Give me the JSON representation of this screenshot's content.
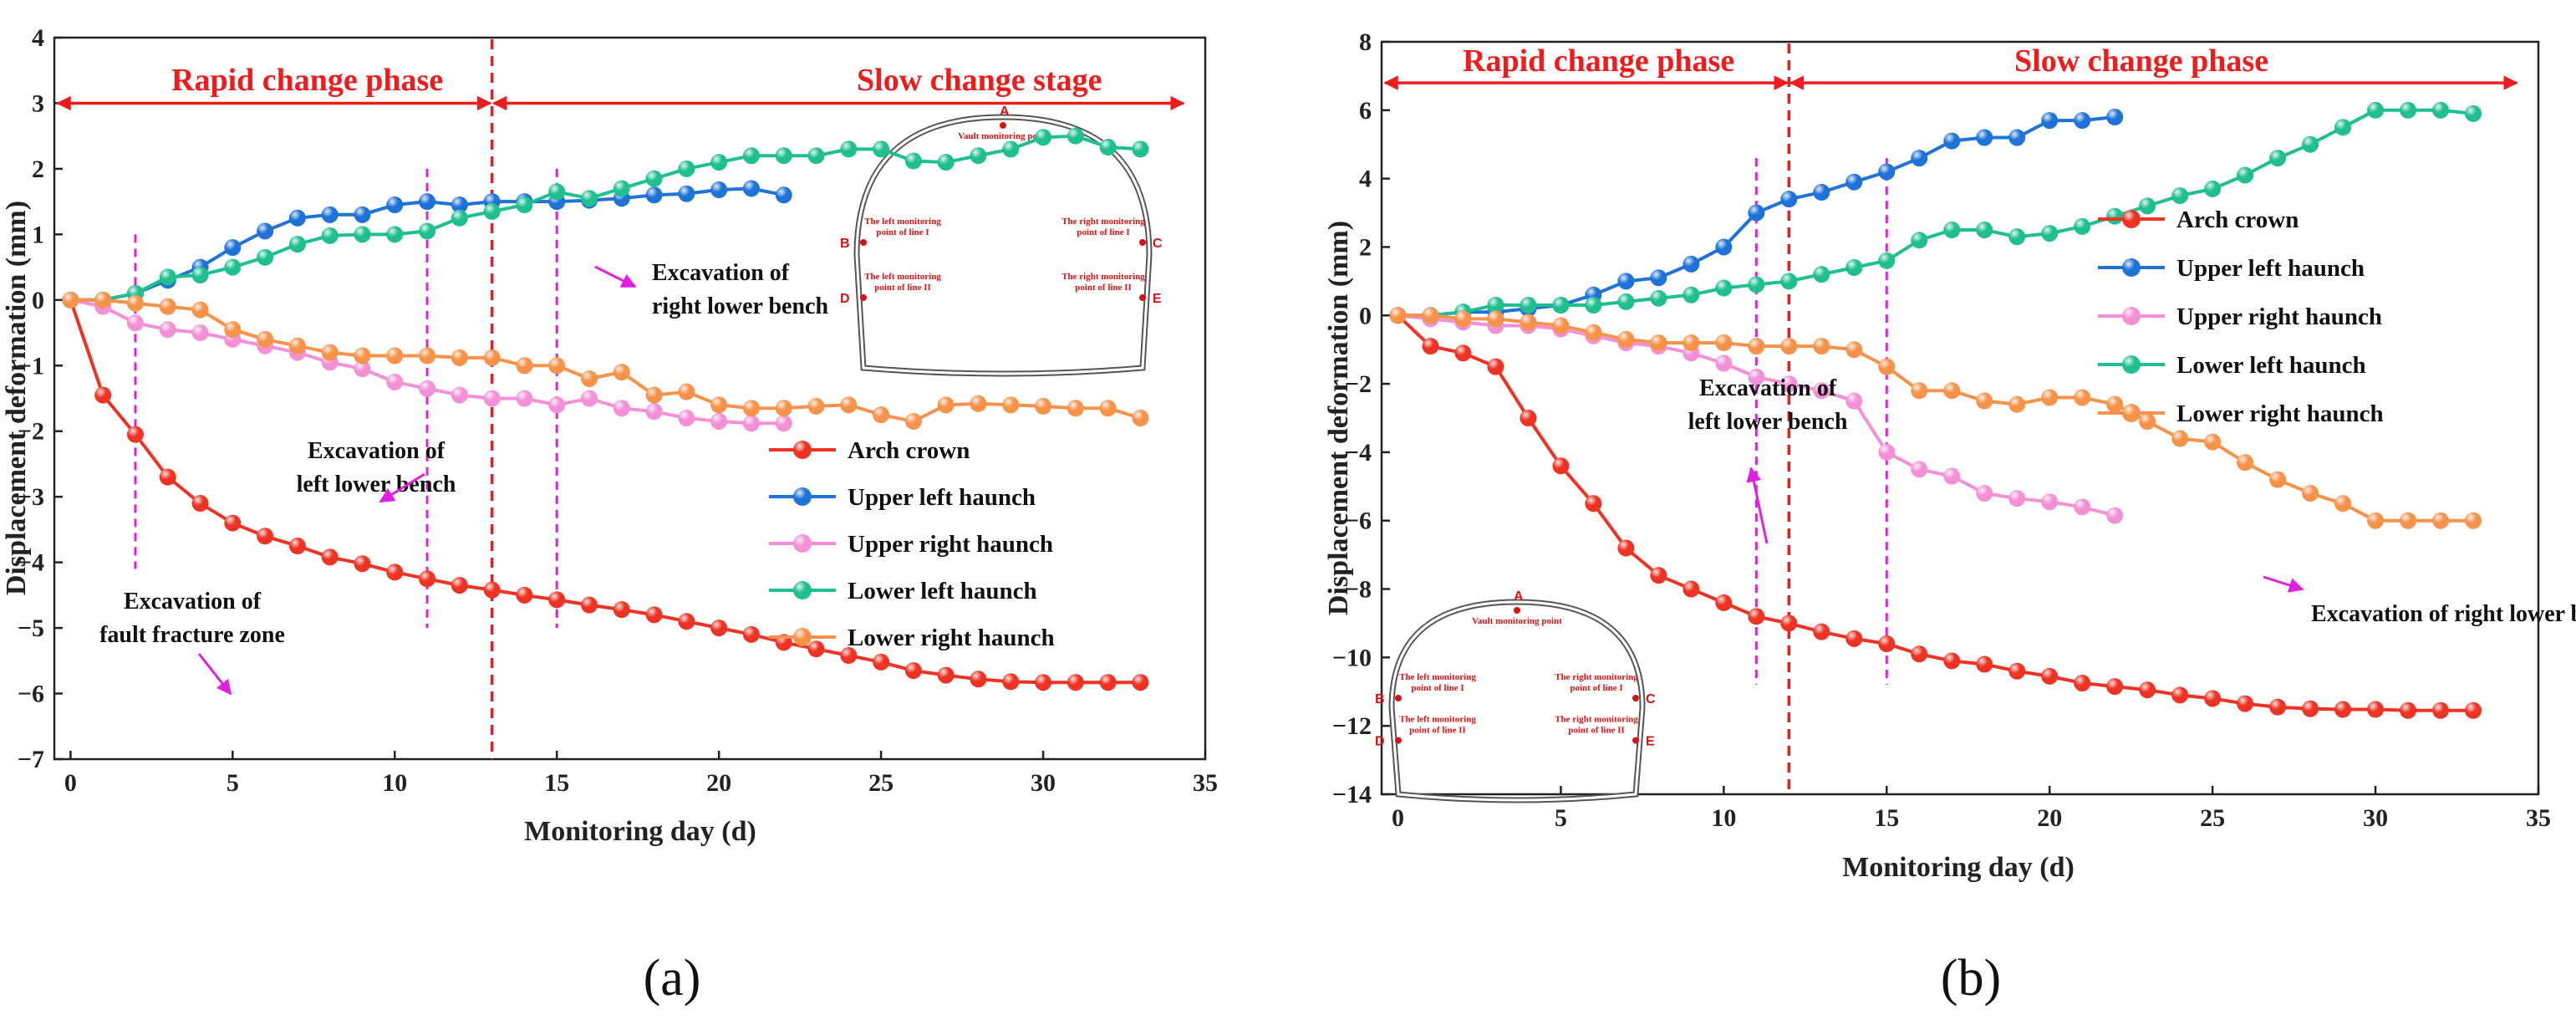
{
  "colors": {
    "arch_crown": "#ee3324",
    "upper_left": "#1f73d8",
    "upper_right": "#f490d6",
    "lower_left": "#1fbf8f",
    "lower_right": "#f7924a",
    "phase": "#ee1c1c",
    "annotation_line": "#e020e0",
    "arrow": "#e020e0"
  },
  "tunnel": {
    "vault": "Vault monitoring point",
    "left1": [
      "The left monitoring",
      "point of line I"
    ],
    "right1": [
      "The right monitoring",
      "point of line I"
    ],
    "left2": [
      "The left monitoring",
      "point of line II"
    ],
    "right2": [
      "The right monitoring",
      "point of line II"
    ],
    "letters": [
      "A",
      "B",
      "C",
      "D",
      "E"
    ]
  },
  "chart_data": [
    {
      "id": "a",
      "type": "line",
      "panel_label": "(a)",
      "xlabel": "Monitoring day (d)",
      "ylabel": "Displacement deformation (mm)",
      "xlim": [
        -0.5,
        35
      ],
      "ylim": [
        -7,
        4
      ],
      "xticks": [
        0,
        5,
        10,
        15,
        20,
        25,
        30,
        35
      ],
      "yticks": [
        4,
        3,
        2,
        1,
        0,
        -1,
        -2,
        -3,
        -4,
        -5,
        -6,
        -7
      ],
      "phase_split_day": 13,
      "phase_arrow_y": 3,
      "phase_labels": [
        "Rapid change phase",
        "Slow change stage"
      ],
      "event_lines": [
        {
          "day": 2,
          "y_range": [
            -4.1,
            1
          ]
        },
        {
          "day": 11,
          "y_range": [
            -5,
            2
          ]
        },
        {
          "day": 15,
          "y_range": [
            -5,
            2
          ]
        }
      ],
      "annotations": [
        {
          "lines": [
            "Excavation of",
            "fault fracture zone"
          ]
        },
        {
          "lines": [
            "Excavation of",
            "left lower bench"
          ]
        },
        {
          "lines": [
            "Excavation of",
            "right lower bench"
          ]
        }
      ],
      "legend_position": "right",
      "series": [
        {
          "name": "Arch crown",
          "color_key": "arch_crown",
          "x": [
            0,
            1,
            2,
            3,
            4,
            5,
            6,
            7,
            8,
            9,
            10,
            11,
            12,
            13,
            14,
            15,
            16,
            17,
            18,
            19,
            20,
            21,
            22,
            23,
            24,
            25,
            26,
            27,
            28,
            29,
            30,
            31,
            32,
            33
          ],
          "y": [
            0,
            -1.45,
            -2.05,
            -2.7,
            -3.1,
            -3.4,
            -3.6,
            -3.75,
            -3.92,
            -4.02,
            -4.15,
            -4.25,
            -4.35,
            -4.42,
            -4.5,
            -4.57,
            -4.65,
            -4.72,
            -4.8,
            -4.9,
            -5.0,
            -5.1,
            -5.22,
            -5.32,
            -5.42,
            -5.52,
            -5.65,
            -5.72,
            -5.78,
            -5.82,
            -5.83,
            -5.83,
            -5.83,
            -5.83
          ]
        },
        {
          "name": "Upper left haunch",
          "color_key": "upper_left",
          "x": [
            0,
            1,
            2,
            3,
            4,
            5,
            6,
            7,
            8,
            9,
            10,
            11,
            12,
            13,
            14,
            15,
            16,
            17,
            18,
            19,
            20,
            21,
            22
          ],
          "y": [
            0,
            0,
            0.1,
            0.3,
            0.5,
            0.8,
            1.05,
            1.25,
            1.3,
            1.3,
            1.45,
            1.5,
            1.45,
            1.5,
            1.5,
            1.5,
            1.52,
            1.55,
            1.6,
            1.62,
            1.68,
            1.7,
            1.6
          ]
        },
        {
          "name": "Upper right haunch",
          "color_key": "upper_right",
          "x": [
            0,
            1,
            2,
            3,
            4,
            5,
            6,
            7,
            8,
            9,
            10,
            11,
            12,
            13,
            14,
            15,
            16,
            17,
            18,
            19,
            20,
            21,
            22
          ],
          "y": [
            0,
            -0.1,
            -0.35,
            -0.45,
            -0.5,
            -0.6,
            -0.7,
            -0.8,
            -0.95,
            -1.05,
            -1.25,
            -1.35,
            -1.45,
            -1.5,
            -1.5,
            -1.6,
            -1.5,
            -1.65,
            -1.7,
            -1.8,
            -1.85,
            -1.88,
            -1.88
          ]
        },
        {
          "name": "Lower left haunch",
          "color_key": "lower_left",
          "x": [
            0,
            1,
            2,
            3,
            4,
            5,
            6,
            7,
            8,
            9,
            10,
            11,
            12,
            13,
            14,
            15,
            16,
            17,
            18,
            19,
            20,
            21,
            22,
            23,
            24,
            25,
            26,
            27,
            28,
            29,
            30,
            31,
            32,
            33
          ],
          "y": [
            0,
            0,
            0.1,
            0.35,
            0.38,
            0.5,
            0.65,
            0.85,
            0.98,
            1.0,
            1.0,
            1.05,
            1.25,
            1.35,
            1.45,
            1.65,
            1.55,
            1.7,
            1.85,
            2.0,
            2.1,
            2.2,
            2.2,
            2.2,
            2.3,
            2.3,
            2.12,
            2.1,
            2.2,
            2.3,
            2.48,
            2.5,
            2.33,
            2.3
          ]
        },
        {
          "name": "Lower right haunch",
          "color_key": "lower_right",
          "x": [
            0,
            1,
            2,
            3,
            4,
            5,
            6,
            7,
            8,
            9,
            10,
            11,
            12,
            13,
            14,
            15,
            16,
            17,
            18,
            19,
            20,
            21,
            22,
            23,
            24,
            25,
            26,
            27,
            28,
            29,
            30,
            31,
            32,
            33
          ],
          "y": [
            0,
            0,
            -0.05,
            -0.1,
            -0.15,
            -0.45,
            -0.6,
            -0.7,
            -0.8,
            -0.85,
            -0.85,
            -0.85,
            -0.88,
            -0.88,
            -1.0,
            -1.0,
            -1.2,
            -1.1,
            -1.45,
            -1.4,
            -1.6,
            -1.65,
            -1.65,
            -1.62,
            -1.6,
            -1.75,
            -1.85,
            -1.6,
            -1.58,
            -1.6,
            -1.62,
            -1.65,
            -1.65,
            -1.8
          ]
        }
      ]
    },
    {
      "id": "b",
      "type": "line",
      "panel_label": "(b)",
      "xlabel": "Monitoring day (d)",
      "ylabel": "Displacement deformation (mm)",
      "xlim": [
        -0.5,
        35
      ],
      "ylim": [
        -14,
        8
      ],
      "xticks": [
        0,
        5,
        10,
        15,
        20,
        25,
        30,
        35
      ],
      "yticks": [
        8,
        6,
        4,
        2,
        0,
        -2,
        -4,
        -6,
        -8,
        -10,
        -12,
        -14
      ],
      "phase_split_day": 12,
      "phase_arrow_y": 6.8,
      "phase_labels": [
        "Rapid change phase",
        "Slow change phase"
      ],
      "event_lines": [
        {
          "day": 11,
          "y_range": [
            -10.8,
            4.6
          ]
        },
        {
          "day": 15,
          "y_range": [
            -10.8,
            4.6
          ]
        }
      ],
      "annotations": [
        {
          "lines": [
            "Excavation of",
            "left lower bench"
          ]
        },
        {
          "lines": [
            "Excavation of right lower bench"
          ]
        }
      ],
      "legend_position": "right",
      "series": [
        {
          "name": "Arch crown",
          "color_key": "arch_crown",
          "x": [
            0,
            1,
            2,
            3,
            4,
            5,
            6,
            7,
            8,
            9,
            10,
            11,
            12,
            13,
            14,
            15,
            16,
            17,
            18,
            19,
            20,
            21,
            22,
            23,
            24,
            25,
            26,
            27,
            28,
            29,
            30,
            31,
            32,
            33
          ],
          "y": [
            0,
            -0.9,
            -1.1,
            -1.5,
            -3.0,
            -4.4,
            -5.5,
            -6.8,
            -7.6,
            -8.0,
            -8.4,
            -8.8,
            -9.0,
            -9.25,
            -9.45,
            -9.6,
            -9.9,
            -10.1,
            -10.2,
            -10.4,
            -10.55,
            -10.75,
            -10.85,
            -10.95,
            -11.1,
            -11.2,
            -11.35,
            -11.45,
            -11.5,
            -11.52,
            -11.52,
            -11.55,
            -11.55,
            -11.55
          ]
        },
        {
          "name": "Upper left haunch",
          "color_key": "upper_left",
          "x": [
            0,
            1,
            2,
            3,
            4,
            5,
            6,
            7,
            8,
            9,
            10,
            11,
            12,
            13,
            14,
            15,
            16,
            17,
            18,
            19,
            20,
            21,
            22
          ],
          "y": [
            0,
            0,
            0.1,
            0.1,
            0.2,
            0.3,
            0.6,
            1.0,
            1.1,
            1.5,
            2.0,
            3.0,
            3.4,
            3.6,
            3.9,
            4.2,
            4.6,
            5.1,
            5.2,
            5.2,
            5.7,
            5.7,
            5.8
          ]
        },
        {
          "name": "Upper right haunch",
          "color_key": "upper_right",
          "x": [
            0,
            1,
            2,
            3,
            4,
            5,
            6,
            7,
            8,
            9,
            10,
            11,
            12,
            13,
            14,
            15,
            16,
            17,
            18,
            19,
            20,
            21,
            22
          ],
          "y": [
            0,
            -0.1,
            -0.2,
            -0.3,
            -0.3,
            -0.4,
            -0.6,
            -0.8,
            -0.9,
            -1.1,
            -1.4,
            -1.8,
            -2.0,
            -2.2,
            -2.5,
            -4.0,
            -4.5,
            -4.7,
            -5.2,
            -5.35,
            -5.45,
            -5.6,
            -5.85
          ]
        },
        {
          "name": "Lower left haunch",
          "color_key": "lower_left",
          "x": [
            0,
            1,
            2,
            3,
            4,
            5,
            6,
            7,
            8,
            9,
            10,
            11,
            12,
            13,
            14,
            15,
            16,
            17,
            18,
            19,
            20,
            21,
            22,
            23,
            24,
            25,
            26,
            27,
            28,
            29,
            30,
            31,
            32,
            33
          ],
          "y": [
            0,
            0,
            0.1,
            0.3,
            0.3,
            0.3,
            0.3,
            0.4,
            0.5,
            0.6,
            0.8,
            0.9,
            1.0,
            1.2,
            1.4,
            1.6,
            2.2,
            2.5,
            2.5,
            2.3,
            2.4,
            2.6,
            2.9,
            3.2,
            3.5,
            3.7,
            4.1,
            4.6,
            5.0,
            5.5,
            6.0,
            6.0,
            6.0,
            5.9
          ]
        },
        {
          "name": "Lower right haunch",
          "color_key": "lower_right",
          "x": [
            0,
            1,
            2,
            3,
            4,
            5,
            6,
            7,
            8,
            9,
            10,
            11,
            12,
            13,
            14,
            15,
            16,
            17,
            18,
            19,
            20,
            21,
            22,
            23,
            24,
            25,
            26,
            27,
            28,
            29,
            30,
            31,
            32,
            33
          ],
          "y": [
            0,
            0,
            -0.1,
            -0.1,
            -0.2,
            -0.3,
            -0.5,
            -0.7,
            -0.8,
            -0.8,
            -0.8,
            -0.9,
            -0.9,
            -0.9,
            -1.0,
            -1.5,
            -2.2,
            -2.2,
            -2.5,
            -2.6,
            -2.4,
            -2.4,
            -2.6,
            -3.1,
            -3.6,
            -3.7,
            -4.3,
            -4.8,
            -5.2,
            -5.5,
            -6.0,
            -6.0,
            -6.0,
            -6.0
          ]
        }
      ]
    }
  ]
}
